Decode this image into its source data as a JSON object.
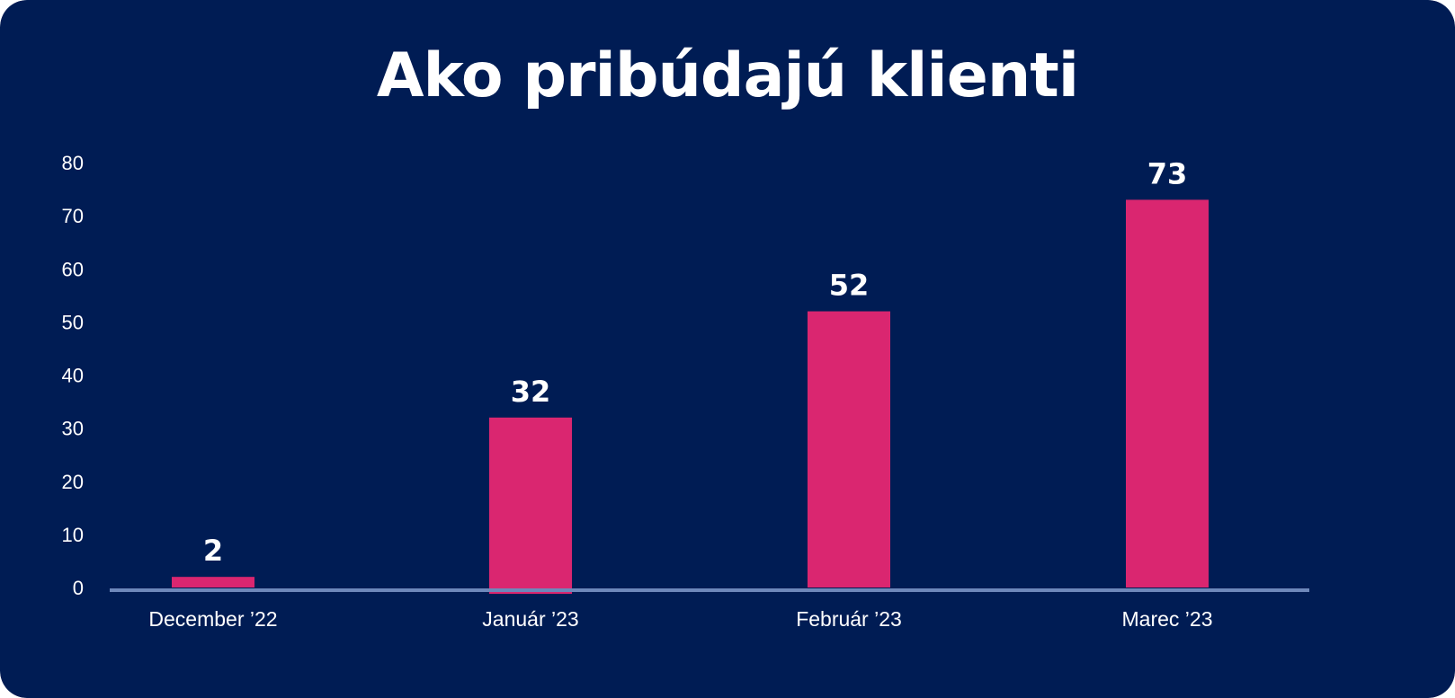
{
  "colors": {
    "background": "#001c54",
    "bar": "#da2670",
    "baseline": "#6e88bb",
    "text": "#ffffff"
  },
  "chart_data": {
    "type": "bar",
    "title": "Ako pribúdajú klienti",
    "categories": [
      "December ’22",
      "Január ’23",
      "Február  ’23",
      "Marec ’23"
    ],
    "values": [
      2,
      32,
      52,
      73
    ],
    "data_labels": [
      "2",
      "32",
      "52",
      "73"
    ],
    "yticks": [
      "0",
      "10",
      "20",
      "30",
      "40",
      "50",
      "60",
      "70",
      "80"
    ],
    "ylim": [
      0,
      80
    ],
    "grid": false,
    "legend": "none"
  }
}
